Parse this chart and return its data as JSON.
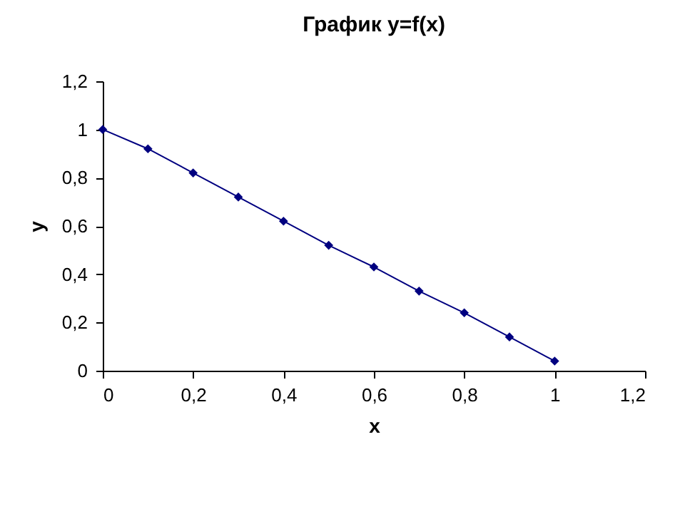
{
  "chart_data": {
    "type": "line",
    "title": "График y=f(x)",
    "xlabel": "x",
    "ylabel": "y",
    "x": [
      0,
      0.1,
      0.2,
      0.3,
      0.4,
      0.5,
      0.6,
      0.7,
      0.8,
      0.9,
      1
    ],
    "series": [
      {
        "color": "#000080",
        "values": [
          1,
          0.92,
          0.82,
          0.72,
          0.62,
          0.52,
          0.43,
          0.33,
          0.24,
          0.14,
          0.04
        ]
      }
    ],
    "xlim": [
      0,
      1.2
    ],
    "ylim": [
      0,
      1.2
    ],
    "xticks": [
      0,
      {
        "value": 0.2,
        "label": "0,2"
      },
      {
        "value": 0.4,
        "label": "0,4"
      },
      {
        "value": 0.6,
        "label": "0,6"
      },
      {
        "value": 0.8,
        "label": "0,8"
      },
      1,
      {
        "value": 1.2,
        "label": "1,2"
      }
    ],
    "yticks": [
      0,
      {
        "value": 0.2,
        "label": "0,2"
      },
      {
        "value": 0.4,
        "label": "0,4"
      },
      {
        "value": 0.6,
        "label": "0,6"
      },
      {
        "value": 0.8,
        "label": "0,8"
      },
      1,
      {
        "value": 1.2,
        "label": "1,2"
      }
    ],
    "marker": "diamond",
    "line_style": "solid",
    "grid": false
  }
}
